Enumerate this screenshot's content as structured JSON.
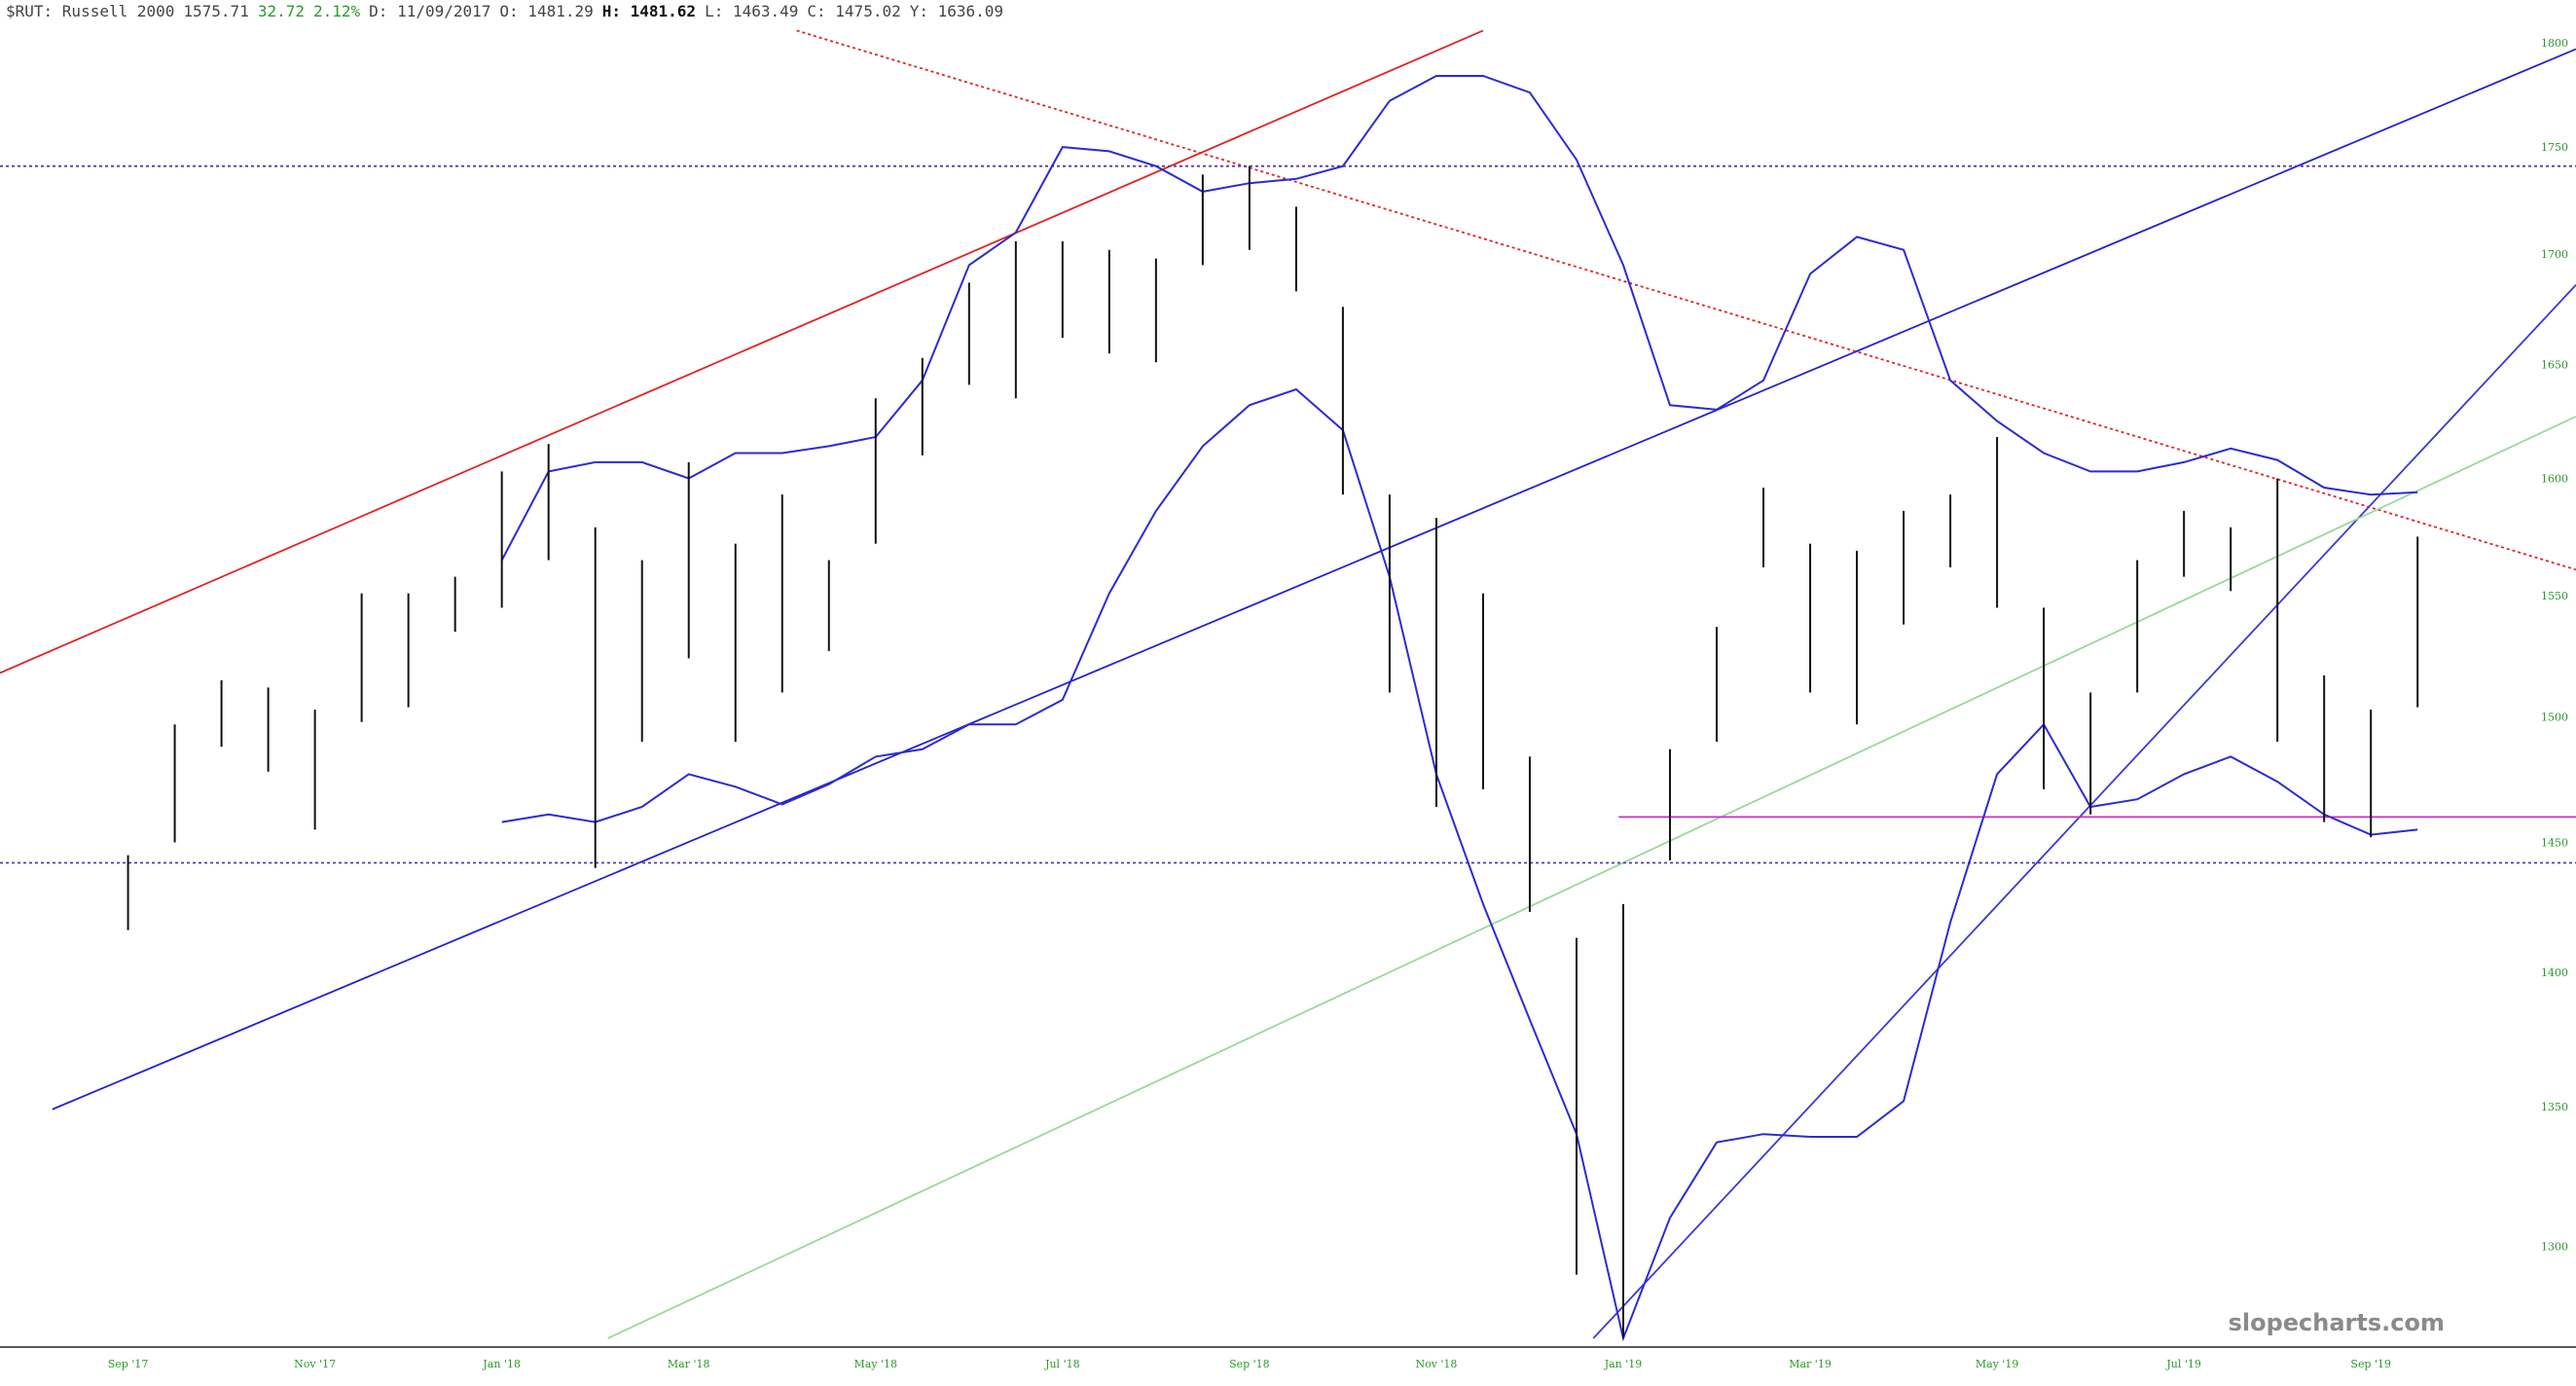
{
  "chart_data": {
    "type": "ohlc",
    "log_scale": true,
    "grid": false,
    "header": {
      "symbol": "$RUT: Russell 2000",
      "last": "1575.71",
      "change": "32.72",
      "change_pct": "2.12%",
      "date": "D: 11/09/2017",
      "open": "O: 1481.29",
      "high": "H: 1481.62",
      "low": "L: 1463.49",
      "close": "C: 1475.02",
      "prev": "Y: 1636.09"
    },
    "watermark": "slopecharts.com",
    "bar_color": "#111111",
    "xlim": [
      -2.74,
      52.39
    ],
    "ylim": [
      1265,
      1821
    ],
    "yticks": [
      1800,
      1750,
      1700,
      1650,
      1600,
      1550,
      1500,
      1450,
      1400,
      1350,
      1300
    ],
    "categories": [
      "Sep '17",
      null,
      null,
      null,
      "Nov '17",
      null,
      null,
      null,
      "Jan '18",
      null,
      null,
      null,
      "Mar '18",
      null,
      null,
      null,
      "May '18",
      null,
      null,
      null,
      "Jul '18",
      null,
      null,
      null,
      "Sep '18",
      null,
      null,
      null,
      "Nov '18",
      null,
      null,
      null,
      "Jan '19",
      null,
      null,
      null,
      "Mar '19",
      null,
      null,
      null,
      "May '19",
      null,
      null,
      null,
      "Jul '19",
      null,
      null,
      null,
      "Sep '19",
      null
    ],
    "high": [
      1445,
      1497,
      1515,
      1512,
      1503,
      1551,
      1551,
      1558,
      1603,
      1615,
      1579,
      1565,
      1607,
      1572,
      1593,
      1565,
      1635,
      1653,
      1687,
      1706,
      1706,
      1702,
      1698,
      1737,
      1741,
      1722,
      1676,
      1593,
      1583,
      1551,
      1484,
      1413,
      1426,
      1487,
      1537,
      1596,
      1572,
      1569,
      1586,
      1593,
      1618,
      1545,
      1510,
      1565,
      1586,
      1579,
      1600,
      1517,
      1503,
      1575
    ],
    "low": [
      1416,
      1450,
      1488,
      1478,
      1455,
      1498,
      1504,
      1535,
      1545,
      1565,
      1440,
      1490,
      1524,
      1490,
      1510,
      1527,
      1572,
      1610,
      1641,
      1635,
      1662,
      1655,
      1651,
      1695,
      1702,
      1683,
      1593,
      1510,
      1464,
      1471,
      1423,
      1290,
      1268,
      1443,
      1490,
      1562,
      1510,
      1497,
      1538,
      1562,
      1545,
      1471,
      1461,
      1510,
      1558,
      1552,
      1490,
      1458,
      1452,
      1504
    ],
    "bands": [
      {
        "color": "#2b2bd6",
        "values": [
          null,
          null,
          null,
          null,
          null,
          null,
          null,
          null,
          1565,
          1603,
          1607,
          1607,
          1600,
          1611,
          1611,
          1614,
          1618,
          1643,
          1695,
          1710,
          1750,
          1748,
          1741,
          1729,
          1733,
          1735,
          1741,
          1772,
          1784,
          1784,
          1776,
          1744,
          1695,
          1632,
          1630,
          1643,
          1691,
          1708,
          1702,
          1643,
          1625,
          1611,
          1603,
          1603,
          1607,
          1613,
          1608,
          1596,
          1593,
          1594
        ]
      },
      {
        "color": "#2b2bd6",
        "values": [
          null,
          null,
          null,
          null,
          null,
          null,
          null,
          null,
          1458,
          1461,
          1458,
          1464,
          1477,
          1472,
          1465,
          1473,
          1484,
          1487,
          1497,
          1497,
          1507,
          1551,
          1586,
          1614,
          1632,
          1639,
          1621,
          1558,
          1477,
          1426,
          1382,
          1340,
          1268,
          1310,
          1337,
          1340,
          1339,
          1339,
          1352,
          1419,
          1477,
          1497,
          1464,
          1467,
          1477,
          1484,
          1474,
          1461,
          1453,
          1455
        ]
      }
    ],
    "trendlines": [
      {
        "x": [
          -2.74,
          29.0
        ],
        "y": [
          1518,
          1806
        ],
        "color": "#e02424",
        "dash": false
      },
      {
        "x": [
          -1.62,
          52.39
        ],
        "y": [
          1349,
          1797
        ],
        "color": "#2323d0",
        "dash": false
      },
      {
        "x": [
          14.31,
          52.39
        ],
        "y": [
          1806,
          1561
        ],
        "color": "#e02424",
        "dash": true
      },
      {
        "x": [
          31.36,
          52.39
        ],
        "y": [
          1268,
          1686
        ],
        "color": "#3a3ad8",
        "dash": false
      },
      {
        "x": [
          10.27,
          52.39
        ],
        "y": [
          1268,
          1627
        ],
        "color": "#9ad89a",
        "dash": false
      },
      {
        "x": [
          -2.74,
          52.39
        ],
        "y": [
          1741,
          1741
        ],
        "color": "#5a3aa8",
        "dash": true
      },
      {
        "x": [
          -2.74,
          52.39
        ],
        "y": [
          1442,
          1442
        ],
        "color": "#5a3aa8",
        "dash": true
      },
      {
        "x": [
          31.9,
          52.39
        ],
        "y": [
          1460,
          1460
        ],
        "color": "#d22bd2",
        "dash": false
      }
    ]
  }
}
